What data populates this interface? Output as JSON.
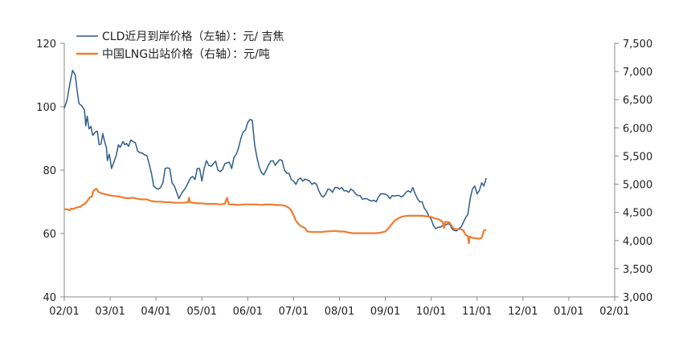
{
  "chart_data": {
    "type": "line",
    "title": "",
    "x_tick_labels": [
      "02/01",
      "03/01",
      "04/01",
      "05/01",
      "06/01",
      "07/01",
      "08/01",
      "09/01",
      "10/01",
      "11/01",
      "12/01",
      "01/01",
      "02/01"
    ],
    "left_axis": {
      "min": 40,
      "max": 120,
      "ticks": [
        "40",
        "60",
        "80",
        "100",
        "120"
      ]
    },
    "right_axis": {
      "min": 3000,
      "max": 7500,
      "ticks": [
        "3,000",
        "3,500",
        "4,000",
        "4,500",
        "5,000",
        "5,500",
        "6,000",
        "6,500",
        "7,000",
        "7,500"
      ]
    },
    "series": [
      {
        "name": "CLD近月到岸价格（左轴）：元/ 吉焦",
        "axis": "left",
        "color": "#2e5c8a",
        "points": [
          [
            0.0,
            99.5
          ],
          [
            0.06,
            102
          ],
          [
            0.12,
            107
          ],
          [
            0.18,
            111.5
          ],
          [
            0.24,
            110
          ],
          [
            0.28,
            105
          ],
          [
            0.32,
            101
          ],
          [
            0.38,
            100.3
          ],
          [
            0.44,
            99
          ],
          [
            0.47,
            94
          ],
          [
            0.5,
            97
          ],
          [
            0.54,
            93
          ],
          [
            0.58,
            93.8
          ],
          [
            0.62,
            91
          ],
          [
            0.68,
            92
          ],
          [
            0.72,
            92.3
          ],
          [
            0.76,
            88
          ],
          [
            0.8,
            88.2
          ],
          [
            0.84,
            91.5
          ],
          [
            0.88,
            89
          ],
          [
            0.92,
            87
          ],
          [
            0.94,
            83
          ],
          [
            0.98,
            85
          ],
          [
            1.0,
            83.5
          ],
          [
            1.03,
            80.5
          ],
          [
            1.08,
            82.5
          ],
          [
            1.13,
            84.5
          ],
          [
            1.18,
            88
          ],
          [
            1.22,
            87.2
          ],
          [
            1.28,
            89
          ],
          [
            1.32,
            88
          ],
          [
            1.36,
            88.4
          ],
          [
            1.4,
            87.5
          ],
          [
            1.45,
            89.5
          ],
          [
            1.5,
            89
          ],
          [
            1.55,
            88.6
          ],
          [
            1.6,
            86
          ],
          [
            1.65,
            85.5
          ],
          [
            1.7,
            85.4
          ],
          [
            1.75,
            84.8
          ],
          [
            1.8,
            84.6
          ],
          [
            1.85,
            82
          ],
          [
            1.9,
            79
          ],
          [
            1.95,
            75
          ],
          [
            2.0,
            74.3
          ],
          [
            2.05,
            74
          ],
          [
            2.1,
            74.5
          ],
          [
            2.15,
            76
          ],
          [
            2.2,
            80.5
          ],
          [
            2.25,
            80.7
          ],
          [
            2.3,
            80.5
          ],
          [
            2.35,
            76
          ],
          [
            2.4,
            75
          ],
          [
            2.45,
            73
          ],
          [
            2.5,
            71
          ],
          [
            2.55,
            72.5
          ],
          [
            2.6,
            73.5
          ],
          [
            2.65,
            74.5
          ],
          [
            2.7,
            76
          ],
          [
            2.75,
            77.5
          ],
          [
            2.8,
            78
          ],
          [
            2.85,
            77
          ],
          [
            2.9,
            80.5
          ],
          [
            2.95,
            80.5
          ],
          [
            3.0,
            76.5
          ],
          [
            3.05,
            80.5
          ],
          [
            3.1,
            83
          ],
          [
            3.15,
            81.5
          ],
          [
            3.2,
            81.2
          ],
          [
            3.25,
            82
          ],
          [
            3.3,
            82.8
          ],
          [
            3.35,
            80
          ],
          [
            3.4,
            79.5
          ],
          [
            3.45,
            80.2
          ],
          [
            3.5,
            82
          ],
          [
            3.55,
            82.3
          ],
          [
            3.6,
            82.5
          ],
          [
            3.65,
            80.5
          ],
          [
            3.7,
            84
          ],
          [
            3.75,
            85
          ],
          [
            3.8,
            87
          ],
          [
            3.85,
            90
          ],
          [
            3.9,
            92
          ],
          [
            3.95,
            92.6
          ],
          [
            4.0,
            95
          ],
          [
            4.05,
            96
          ],
          [
            4.1,
            95.7
          ],
          [
            4.15,
            88
          ],
          [
            4.2,
            84
          ],
          [
            4.25,
            81
          ],
          [
            4.3,
            79.2
          ],
          [
            4.35,
            78.5
          ],
          [
            4.4,
            80
          ],
          [
            4.45,
            81.5
          ],
          [
            4.5,
            82.8
          ],
          [
            4.55,
            83
          ],
          [
            4.6,
            81.5
          ],
          [
            4.65,
            82.5
          ],
          [
            4.7,
            83.3
          ],
          [
            4.75,
            83
          ],
          [
            4.8,
            80
          ],
          [
            4.85,
            79
          ],
          [
            4.9,
            79
          ],
          [
            4.95,
            77
          ],
          [
            5.0,
            76.5
          ],
          [
            5.05,
            75.5
          ],
          [
            5.1,
            77
          ],
          [
            5.15,
            77.5
          ],
          [
            5.2,
            76.5
          ],
          [
            5.25,
            77.2
          ],
          [
            5.3,
            76.9
          ],
          [
            5.35,
            76.5
          ],
          [
            5.4,
            75.5
          ],
          [
            5.45,
            76
          ],
          [
            5.5,
            75.5
          ],
          [
            5.55,
            73.5
          ],
          [
            5.6,
            72
          ],
          [
            5.65,
            71.5
          ],
          [
            5.7,
            72.5
          ],
          [
            5.75,
            74
          ],
          [
            5.8,
            73.8
          ],
          [
            5.85,
            73
          ],
          [
            5.9,
            74.5
          ],
          [
            5.95,
            74.5
          ],
          [
            6.0,
            74
          ],
          [
            6.05,
            74.5
          ],
          [
            6.1,
            73.5
          ],
          [
            6.15,
            73.5
          ],
          [
            6.2,
            73
          ],
          [
            6.25,
            74
          ],
          [
            6.3,
            73.5
          ],
          [
            6.35,
            72.5
          ],
          [
            6.4,
            72
          ],
          [
            6.45,
            72
          ],
          [
            6.5,
            70.8
          ],
          [
            6.55,
            71
          ],
          [
            6.6,
            71
          ],
          [
            6.65,
            70.5
          ],
          [
            6.7,
            70.2
          ],
          [
            6.75,
            70.5
          ],
          [
            6.8,
            70
          ],
          [
            6.85,
            71.5
          ],
          [
            6.9,
            72.5
          ],
          [
            6.95,
            72.5
          ],
          [
            7.0,
            72.4
          ],
          [
            7.05,
            72
          ],
          [
            7.1,
            71
          ],
          [
            7.15,
            72
          ],
          [
            7.2,
            71.8
          ],
          [
            7.25,
            72
          ],
          [
            7.3,
            72
          ],
          [
            7.35,
            71.5
          ],
          [
            7.4,
            72
          ],
          [
            7.45,
            73
          ],
          [
            7.5,
            73.5
          ],
          [
            7.55,
            73
          ],
          [
            7.6,
            74.5
          ],
          [
            7.65,
            72.5
          ],
          [
            7.7,
            71
          ],
          [
            7.75,
            70
          ],
          [
            7.8,
            70
          ],
          [
            7.85,
            68
          ],
          [
            7.9,
            67
          ],
          [
            7.95,
            65.5
          ],
          [
            8.0,
            64.5
          ],
          [
            8.05,
            62.5
          ],
          [
            8.1,
            61.5
          ],
          [
            8.15,
            62
          ],
          [
            8.2,
            62
          ],
          [
            8.25,
            62.5
          ],
          [
            8.3,
            62.5
          ],
          [
            8.35,
            63
          ],
          [
            8.4,
            63
          ],
          [
            8.45,
            61.5
          ],
          [
            8.5,
            61
          ],
          [
            8.55,
            60.8
          ],
          [
            8.6,
            61.5
          ],
          [
            8.65,
            62
          ],
          [
            8.7,
            63.5
          ],
          [
            8.75,
            65
          ],
          [
            8.8,
            66
          ],
          [
            8.85,
            71
          ],
          [
            8.9,
            74
          ],
          [
            8.95,
            75
          ],
          [
            9.0,
            72.5
          ],
          [
            9.05,
            73.5
          ],
          [
            9.1,
            76
          ],
          [
            9.15,
            75
          ],
          [
            9.2,
            77.5
          ]
        ]
      },
      {
        "name": "中国LNG出站价格（右轴）：元/吨",
        "axis": "right",
        "color": "#ed7d31",
        "points": [
          [
            0.0,
            4560
          ],
          [
            0.08,
            4550
          ],
          [
            0.12,
            4540
          ],
          [
            0.15,
            4570
          ],
          [
            0.2,
            4560
          ],
          [
            0.25,
            4580
          ],
          [
            0.3,
            4590
          ],
          [
            0.35,
            4600
          ],
          [
            0.4,
            4630
          ],
          [
            0.45,
            4650
          ],
          [
            0.5,
            4700
          ],
          [
            0.55,
            4760
          ],
          [
            0.6,
            4780
          ],
          [
            0.63,
            4870
          ],
          [
            0.66,
            4900
          ],
          [
            0.7,
            4920
          ],
          [
            0.75,
            4860
          ],
          [
            0.8,
            4840
          ],
          [
            0.9,
            4820
          ],
          [
            1.0,
            4800
          ],
          [
            1.1,
            4790
          ],
          [
            1.2,
            4780
          ],
          [
            1.3,
            4760
          ],
          [
            1.4,
            4750
          ],
          [
            1.5,
            4760
          ],
          [
            1.6,
            4740
          ],
          [
            1.7,
            4730
          ],
          [
            1.8,
            4730
          ],
          [
            1.9,
            4700
          ],
          [
            2.0,
            4690
          ],
          [
            2.1,
            4690
          ],
          [
            2.2,
            4680
          ],
          [
            2.3,
            4680
          ],
          [
            2.4,
            4670
          ],
          [
            2.5,
            4670
          ],
          [
            2.6,
            4670
          ],
          [
            2.7,
            4680
          ],
          [
            2.72,
            4760
          ],
          [
            2.74,
            4680
          ],
          [
            2.8,
            4670
          ],
          [
            2.9,
            4660
          ],
          [
            3.0,
            4660
          ],
          [
            3.1,
            4650
          ],
          [
            3.2,
            4650
          ],
          [
            3.3,
            4650
          ],
          [
            3.4,
            4640
          ],
          [
            3.5,
            4650
          ],
          [
            3.55,
            4760
          ],
          [
            3.58,
            4650
          ],
          [
            3.6,
            4640
          ],
          [
            3.7,
            4640
          ],
          [
            3.8,
            4630
          ],
          [
            3.9,
            4640
          ],
          [
            4.0,
            4640
          ],
          [
            4.1,
            4640
          ],
          [
            4.2,
            4640
          ],
          [
            4.3,
            4630
          ],
          [
            4.4,
            4640
          ],
          [
            4.5,
            4640
          ],
          [
            4.6,
            4630
          ],
          [
            4.7,
            4630
          ],
          [
            4.8,
            4620
          ],
          [
            4.85,
            4600
          ],
          [
            4.9,
            4580
          ],
          [
            4.95,
            4530
          ],
          [
            5.0,
            4450
          ],
          [
            5.05,
            4350
          ],
          [
            5.1,
            4300
          ],
          [
            5.15,
            4260
          ],
          [
            5.2,
            4240
          ],
          [
            5.25,
            4220
          ],
          [
            5.3,
            4160
          ],
          [
            5.4,
            4150
          ],
          [
            5.5,
            4150
          ],
          [
            5.6,
            4150
          ],
          [
            5.7,
            4160
          ],
          [
            5.8,
            4165
          ],
          [
            5.9,
            4170
          ],
          [
            6.0,
            4160
          ],
          [
            6.1,
            4160
          ],
          [
            6.2,
            4140
          ],
          [
            6.3,
            4130
          ],
          [
            6.4,
            4130
          ],
          [
            6.5,
            4130
          ],
          [
            6.6,
            4130
          ],
          [
            6.7,
            4130
          ],
          [
            6.8,
            4130
          ],
          [
            6.9,
            4140
          ],
          [
            6.95,
            4150
          ],
          [
            7.0,
            4160
          ],
          [
            7.05,
            4200
          ],
          [
            7.1,
            4250
          ],
          [
            7.15,
            4300
          ],
          [
            7.2,
            4350
          ],
          [
            7.25,
            4380
          ],
          [
            7.3,
            4400
          ],
          [
            7.35,
            4420
          ],
          [
            7.4,
            4430
          ],
          [
            7.5,
            4440
          ],
          [
            7.6,
            4440
          ],
          [
            7.7,
            4440
          ],
          [
            7.8,
            4440
          ],
          [
            7.9,
            4430
          ],
          [
            8.0,
            4420
          ],
          [
            8.05,
            4400
          ],
          [
            8.1,
            4390
          ],
          [
            8.15,
            4380
          ],
          [
            8.2,
            4360
          ],
          [
            8.25,
            4330
          ],
          [
            8.28,
            4220
          ],
          [
            8.3,
            4330
          ],
          [
            8.35,
            4330
          ],
          [
            8.4,
            4320
          ],
          [
            8.45,
            4250
          ],
          [
            8.5,
            4210
          ],
          [
            8.55,
            4200
          ],
          [
            8.6,
            4200
          ],
          [
            8.65,
            4200
          ],
          [
            8.7,
            4180
          ],
          [
            8.75,
            4100
          ],
          [
            8.8,
            4080
          ],
          [
            8.82,
            3950
          ],
          [
            8.84,
            4070
          ],
          [
            8.9,
            4050
          ],
          [
            8.95,
            4040
          ],
          [
            9.0,
            4040
          ],
          [
            9.05,
            4030
          ],
          [
            9.1,
            4050
          ],
          [
            9.12,
            4100
          ],
          [
            9.15,
            4180
          ],
          [
            9.2,
            4190
          ]
        ]
      }
    ]
  }
}
